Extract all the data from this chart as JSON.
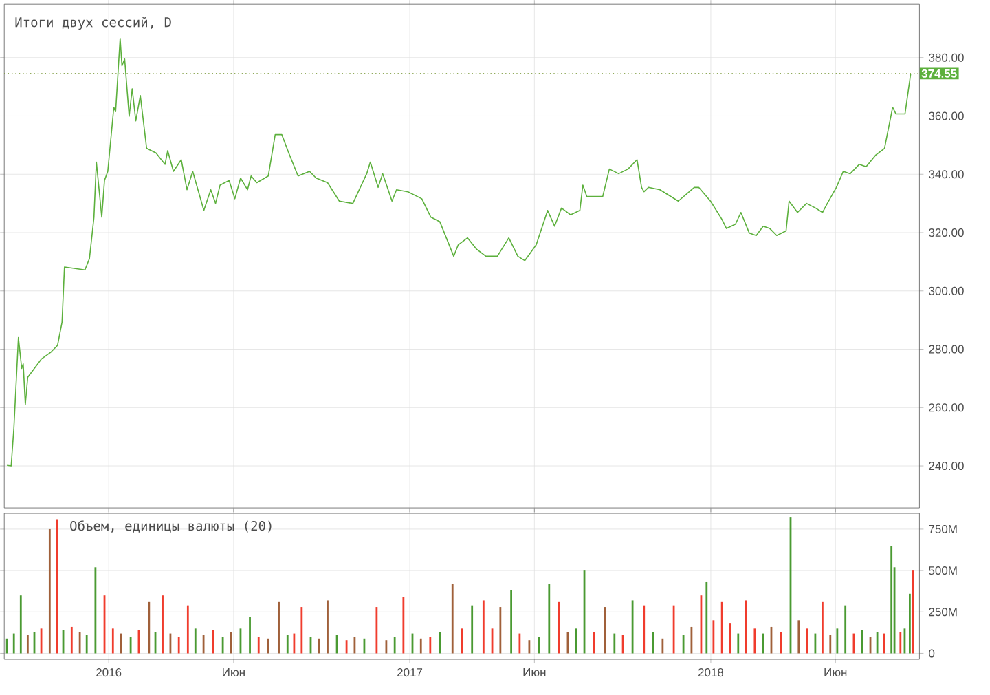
{
  "chart_data": [
    {
      "type": "line",
      "title": "Итоги двух сессий, D",
      "color": "#5cb03c",
      "line_style": "solid",
      "grid": true,
      "tick_labels": "y",
      "x": [
        2015.662,
        2015.676,
        2015.685,
        2015.7,
        2015.711,
        2015.716,
        2015.723,
        2015.731,
        2015.776,
        2015.807,
        2015.83,
        2015.845,
        2015.853,
        2015.921,
        2015.936,
        2015.951,
        2015.959,
        2015.977,
        2015.986,
        2015.997,
        2016.017,
        2016.023,
        2016.038,
        2016.044,
        2016.053,
        2016.068,
        2016.078,
        2016.09,
        2016.105,
        2016.126,
        2016.157,
        2016.187,
        2016.196,
        2016.215,
        2016.241,
        2016.26,
        2016.279,
        2016.316,
        2016.339,
        2016.355,
        2016.37,
        2016.4,
        2016.419,
        2016.438,
        2016.461,
        2016.473,
        2016.492,
        2016.53,
        2016.553,
        2016.575,
        2016.598,
        2016.629,
        2016.667,
        2016.689,
        2016.727,
        2016.766,
        2016.811,
        2016.857,
        2016.869,
        2016.895,
        2016.91,
        2016.941,
        2016.956,
        2016.994,
        2017.04,
        2017.07,
        2017.1,
        2017.146,
        2017.161,
        2017.192,
        2017.222,
        2017.253,
        2017.291,
        2017.329,
        2017.359,
        2017.382,
        2017.42,
        2017.458,
        2017.481,
        2017.504,
        2017.534,
        2017.565,
        2017.575,
        2017.588,
        2017.641,
        2017.663,
        2017.694,
        2017.725,
        2017.755,
        2017.77,
        2017.778,
        2017.793,
        2017.831,
        2017.892,
        2017.945,
        2017.96,
        2017.999,
        2018.037,
        2018.052,
        2018.082,
        2018.1,
        2018.128,
        2018.151,
        2018.174,
        2018.196,
        2018.219,
        2018.25,
        2018.26,
        2018.288,
        2018.318,
        2018.348,
        2018.371,
        2018.387,
        2018.417,
        2018.44,
        2018.463,
        2018.493,
        2018.516,
        2018.547,
        2018.577,
        2018.604,
        2018.615,
        2018.645,
        2018.664
      ],
      "values": [
        240.2,
        240,
        253,
        284,
        273.4,
        275,
        261,
        270.4,
        276.6,
        278.9,
        281.3,
        289.3,
        308.2,
        307.2,
        311.1,
        325.3,
        344.2,
        325.3,
        337.9,
        341,
        363,
        361.5,
        386.6,
        377.2,
        379.5,
        359.9,
        369.3,
        358.3,
        367,
        348.9,
        347.3,
        343.4,
        348.1,
        341,
        345,
        334.7,
        341,
        327.6,
        334.7,
        330,
        336.3,
        337.9,
        331.6,
        338.7,
        334.7,
        339.4,
        337.1,
        339.4,
        353.6,
        353.6,
        347.3,
        339.4,
        341,
        338.7,
        337.1,
        330.8,
        330,
        340.2,
        344.2,
        335.5,
        340.2,
        330.8,
        334.7,
        334,
        331.6,
        325.3,
        323.7,
        311.9,
        315.8,
        318.2,
        314.3,
        311.9,
        311.9,
        318.2,
        311.9,
        310.4,
        315.8,
        327.6,
        322.2,
        328.4,
        326.1,
        327.6,
        336.3,
        332.4,
        332.4,
        341.8,
        340.2,
        341.8,
        345,
        335.5,
        334,
        335.5,
        334.7,
        330.8,
        335.5,
        335.5,
        330.8,
        324.5,
        321.4,
        322.9,
        326.9,
        319.8,
        319,
        322.2,
        321.4,
        319,
        320.6,
        330.8,
        326.9,
        330,
        328.4,
        326.9,
        330,
        335.5,
        341,
        340.2,
        343.4,
        342.6,
        346.5,
        348.9,
        363,
        360.7,
        360.7,
        374.55
      ],
      "xlim": [
        2015.653,
        2018.693
      ],
      "ylim": [
        225.6,
        398.3
      ],
      "xticks": [
        {
          "value": 2016,
          "label": null
        },
        {
          "value": 2016.415,
          "label": null
        },
        {
          "value": 2017,
          "label": null
        },
        {
          "value": 2017.414,
          "label": null
        },
        {
          "value": 2018,
          "label": null
        },
        {
          "value": 2018.414,
          "label": null
        }
      ],
      "yticks": [
        {
          "value": 240,
          "label": "240.00"
        },
        {
          "value": 260,
          "label": "260.00"
        },
        {
          "value": 280,
          "label": "280.00"
        },
        {
          "value": 300,
          "label": "300.00"
        },
        {
          "value": 320,
          "label": "320.00"
        },
        {
          "value": 340,
          "label": "340.00"
        },
        {
          "value": 360,
          "label": "360.00"
        },
        {
          "value": 380,
          "label": "380.00"
        }
      ],
      "ref_lines": [
        {
          "axis": "y",
          "value": 374.55,
          "label": "374.55",
          "color": "#6b8e23",
          "line_style": "dotted"
        }
      ]
    },
    {
      "type": "bar",
      "title": "Объем, единицы валюты (20)",
      "grid": true,
      "x": [
        2015.662,
        2015.685,
        2015.708,
        2015.731,
        2015.753,
        2015.776,
        2015.804,
        2015.828,
        2015.849,
        2015.877,
        2015.904,
        2015.927,
        2015.956,
        2015.986,
        2016.014,
        2016.041,
        2016.073,
        2016.1,
        2016.134,
        2016.155,
        2016.179,
        2016.205,
        2016.233,
        2016.263,
        2016.288,
        2016.315,
        2016.347,
        2016.379,
        2016.406,
        2016.438,
        2016.469,
        2016.498,
        2016.53,
        2016.565,
        2016.594,
        2016.616,
        2016.641,
        2016.671,
        2016.699,
        2016.727,
        2016.758,
        2016.79,
        2016.817,
        2016.849,
        2016.89,
        2016.922,
        2016.95,
        2016.979,
        2017.009,
        2017.037,
        2017.068,
        2017.1,
        2017.142,
        2017.174,
        2017.207,
        2017.245,
        2017.274,
        2017.301,
        2017.337,
        2017.365,
        2017.397,
        2017.429,
        2017.463,
        2017.496,
        2017.525,
        2017.553,
        2017.58,
        2017.612,
        2017.648,
        2017.68,
        2017.708,
        2017.74,
        2017.778,
        2017.808,
        2017.84,
        2017.877,
        2017.909,
        2017.936,
        2017.968,
        2017.986,
        2018.009,
        2018.037,
        2018.064,
        2018.091,
        2018.117,
        2018.146,
        2018.174,
        2018.201,
        2018.233,
        2018.265,
        2018.292,
        2018.32,
        2018.347,
        2018.371,
        2018.397,
        2018.42,
        2018.447,
        2018.475,
        2018.502,
        2018.53,
        2018.553,
        2018.575,
        2018.6,
        2018.61,
        2018.63,
        2018.644,
        2018.661,
        2018.671
      ],
      "values": [
        90,
        120,
        350,
        110,
        130,
        150,
        750,
        810,
        140,
        160,
        130,
        110,
        520,
        350,
        150,
        120,
        100,
        140,
        310,
        130,
        350,
        120,
        100,
        290,
        150,
        110,
        140,
        100,
        130,
        150,
        220,
        100,
        90,
        310,
        110,
        120,
        280,
        100,
        90,
        320,
        110,
        80,
        100,
        90,
        280,
        80,
        100,
        340,
        120,
        90,
        100,
        130,
        420,
        150,
        290,
        320,
        150,
        280,
        380,
        120,
        80,
        100,
        420,
        310,
        130,
        150,
        500,
        130,
        280,
        120,
        110,
        320,
        290,
        130,
        90,
        290,
        110,
        160,
        350,
        430,
        200,
        310,
        180,
        120,
        320,
        150,
        120,
        160,
        130,
        820,
        200,
        150,
        120,
        310,
        110,
        150,
        290,
        120,
        140,
        100,
        130,
        120,
        650,
        520,
        130,
        150,
        360,
        500
      ],
      "colors": [
        "#4a9a32",
        "#4a9a32",
        "#4a9a32",
        "#a0603a",
        "#4a9a32",
        "#f03c2d",
        "#a0603a",
        "#f03c2d",
        "#4a9a32",
        "#f03c2d",
        "#a0603a",
        "#4a9a32",
        "#4a9a32",
        "#f03c2d",
        "#f03c2d",
        "#a0603a",
        "#4a9a32",
        "#f03c2d",
        "#a0603a",
        "#4a9a32",
        "#f03c2d",
        "#a0603a",
        "#f03c2d",
        "#f03c2d",
        "#4a9a32",
        "#a0603a",
        "#f03c2d",
        "#4a9a32",
        "#a0603a",
        "#4a9a32",
        "#4a9a32",
        "#f03c2d",
        "#a0603a",
        "#a0603a",
        "#4a9a32",
        "#f03c2d",
        "#f03c2d",
        "#4a9a32",
        "#a0603a",
        "#a0603a",
        "#4a9a32",
        "#f03c2d",
        "#a0603a",
        "#4a9a32",
        "#f03c2d",
        "#a0603a",
        "#4a9a32",
        "#f03c2d",
        "#4a9a32",
        "#a0603a",
        "#f03c2d",
        "#4a9a32",
        "#a0603a",
        "#f03c2d",
        "#4a9a32",
        "#f03c2d",
        "#f03c2d",
        "#a0603a",
        "#4a9a32",
        "#f03c2d",
        "#a0603a",
        "#4a9a32",
        "#4a9a32",
        "#f03c2d",
        "#a0603a",
        "#4a9a32",
        "#4a9a32",
        "#f03c2d",
        "#a0603a",
        "#4a9a32",
        "#f03c2d",
        "#4a9a32",
        "#f03c2d",
        "#4a9a32",
        "#a0603a",
        "#f03c2d",
        "#4a9a32",
        "#a0603a",
        "#f03c2d",
        "#4a9a32",
        "#f03c2d",
        "#f03c2d",
        "#f03c2d",
        "#4a9a32",
        "#f03c2d",
        "#f03c2d",
        "#4a9a32",
        "#a0603a",
        "#f03c2d",
        "#4a9a32",
        "#a0603a",
        "#f03c2d",
        "#4a9a32",
        "#f03c2d",
        "#a0603a",
        "#4a9a32",
        "#4a9a32",
        "#f03c2d",
        "#4a9a32",
        "#a0603a",
        "#4a9a32",
        "#f03c2d",
        "#4a9a32",
        "#4a9a32",
        "#f03c2d",
        "#4a9a32",
        "#4a9a32",
        "#f03c2d"
      ],
      "xlim": [
        2015.653,
        2018.693
      ],
      "ylim": [
        -35.7,
        845
      ],
      "xticks": [
        {
          "value": 2016,
          "label": "2016"
        },
        {
          "value": 2016.415,
          "label": "Июн"
        },
        {
          "value": 2017,
          "label": "2017"
        },
        {
          "value": 2017.414,
          "label": "Июн"
        },
        {
          "value": 2018,
          "label": "2018"
        },
        {
          "value": 2018.414,
          "label": "Июн"
        }
      ],
      "yticks": [
        0,
        {
          "value": 250,
          "label": "250M"
        },
        {
          "value": 500,
          "label": "500M"
        },
        {
          "value": 750,
          "label": "750M"
        }
      ]
    }
  ]
}
